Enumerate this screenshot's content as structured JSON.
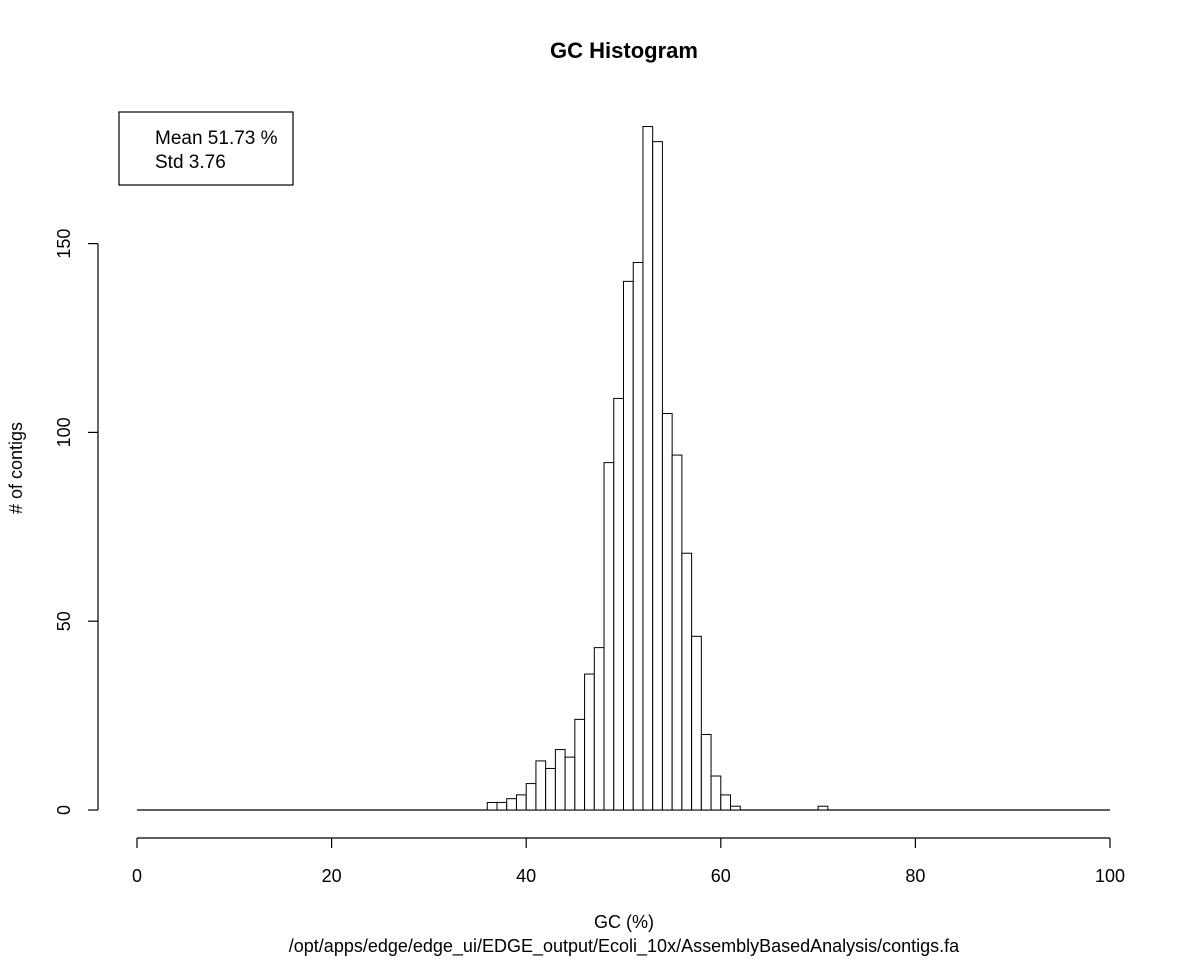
{
  "chart_data": {
    "type": "bar",
    "title": "GC Histogram",
    "xlabel": "GC (%)",
    "subtitle": "/opt/apps/edge/edge_ui/EDGE_output/Ecoli_10x/AssemblyBasedAnalysis/contigs.fa",
    "ylabel": "# of contigs",
    "xlim": [
      0,
      100
    ],
    "ylim": [
      0,
      182
    ],
    "x_ticks": [
      0,
      20,
      40,
      60,
      80,
      100
    ],
    "y_ticks": [
      0,
      50,
      100,
      150
    ],
    "bin_width": 1,
    "bins_start": [
      36,
      37,
      38,
      39,
      40,
      41,
      42,
      43,
      44,
      45,
      46,
      47,
      48,
      49,
      50,
      51,
      52,
      53,
      54,
      55,
      56,
      57,
      58,
      59,
      60,
      61,
      70
    ],
    "values": [
      2,
      2,
      3,
      4,
      7,
      13,
      11,
      16,
      14,
      24,
      36,
      43,
      92,
      109,
      140,
      145,
      181,
      177,
      105,
      94,
      68,
      46,
      20,
      9,
      4,
      1,
      1
    ],
    "legend": {
      "position": "top-left",
      "lines": [
        "Mean 51.73 %",
        "Std 3.76"
      ]
    },
    "grid": false
  }
}
